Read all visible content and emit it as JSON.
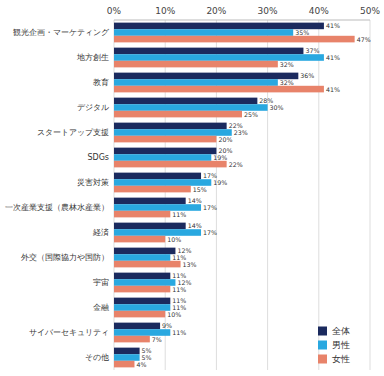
{
  "chart_data": {
    "type": "bar",
    "orientation": "horizontal",
    "categories": [
      "観光企画・マーケティング",
      "地方創生",
      "教育",
      "デジタル",
      "スタートアップ支援",
      "SDGs",
      "災害対策",
      "一次産業支援（農林水産業）",
      "経済",
      "外交（国際協力や国防）",
      "宇宙",
      "金融",
      "サイバーセキュリティ",
      "その他"
    ],
    "series": [
      {
        "name": "全体",
        "color": "#1b2a5e",
        "values": [
          41,
          37,
          36,
          28,
          22,
          20,
          17,
          14,
          14,
          12,
          11,
          11,
          9,
          5
        ],
        "value_labels": [
          "41%",
          "37%",
          "36%",
          "28%",
          "22%",
          "20%",
          "17%",
          "14%",
          "14%",
          "12%",
          "11%",
          "11%",
          "9%",
          "5%"
        ]
      },
      {
        "name": "男性",
        "color": "#29a8e0",
        "values": [
          35,
          41,
          32,
          30,
          23,
          19,
          19,
          17,
          17,
          11,
          12,
          11,
          11,
          5
        ],
        "value_labels": [
          "35%",
          "41%",
          "32%",
          "30%",
          "23%",
          "19%",
          "19%",
          "17%",
          "17%",
          "11%",
          "12%",
          "11%",
          "11%",
          "5%"
        ]
      },
      {
        "name": "女性",
        "color": "#e8836a",
        "values": [
          47,
          32,
          41,
          25,
          20,
          22,
          15,
          11,
          10,
          13,
          11,
          10,
          7,
          4
        ],
        "value_labels": [
          "47%",
          "32%",
          "41%",
          "25%",
          "20%",
          "22%",
          "15%",
          "11%",
          "10%",
          "13%",
          "11%",
          "10%",
          "7%",
          "4%"
        ]
      }
    ],
    "xlim": [
      0,
      50
    ],
    "xticks": [
      {
        "value": 0,
        "label": "0%"
      },
      {
        "value": 10,
        "label": "10%"
      },
      {
        "value": 20,
        "label": "20%"
      },
      {
        "value": 30,
        "label": "30%"
      },
      {
        "value": 40,
        "label": "40%"
      },
      {
        "value": 50,
        "label": "50%"
      }
    ],
    "grid": true,
    "data_labels": true,
    "legend": "lower right"
  }
}
